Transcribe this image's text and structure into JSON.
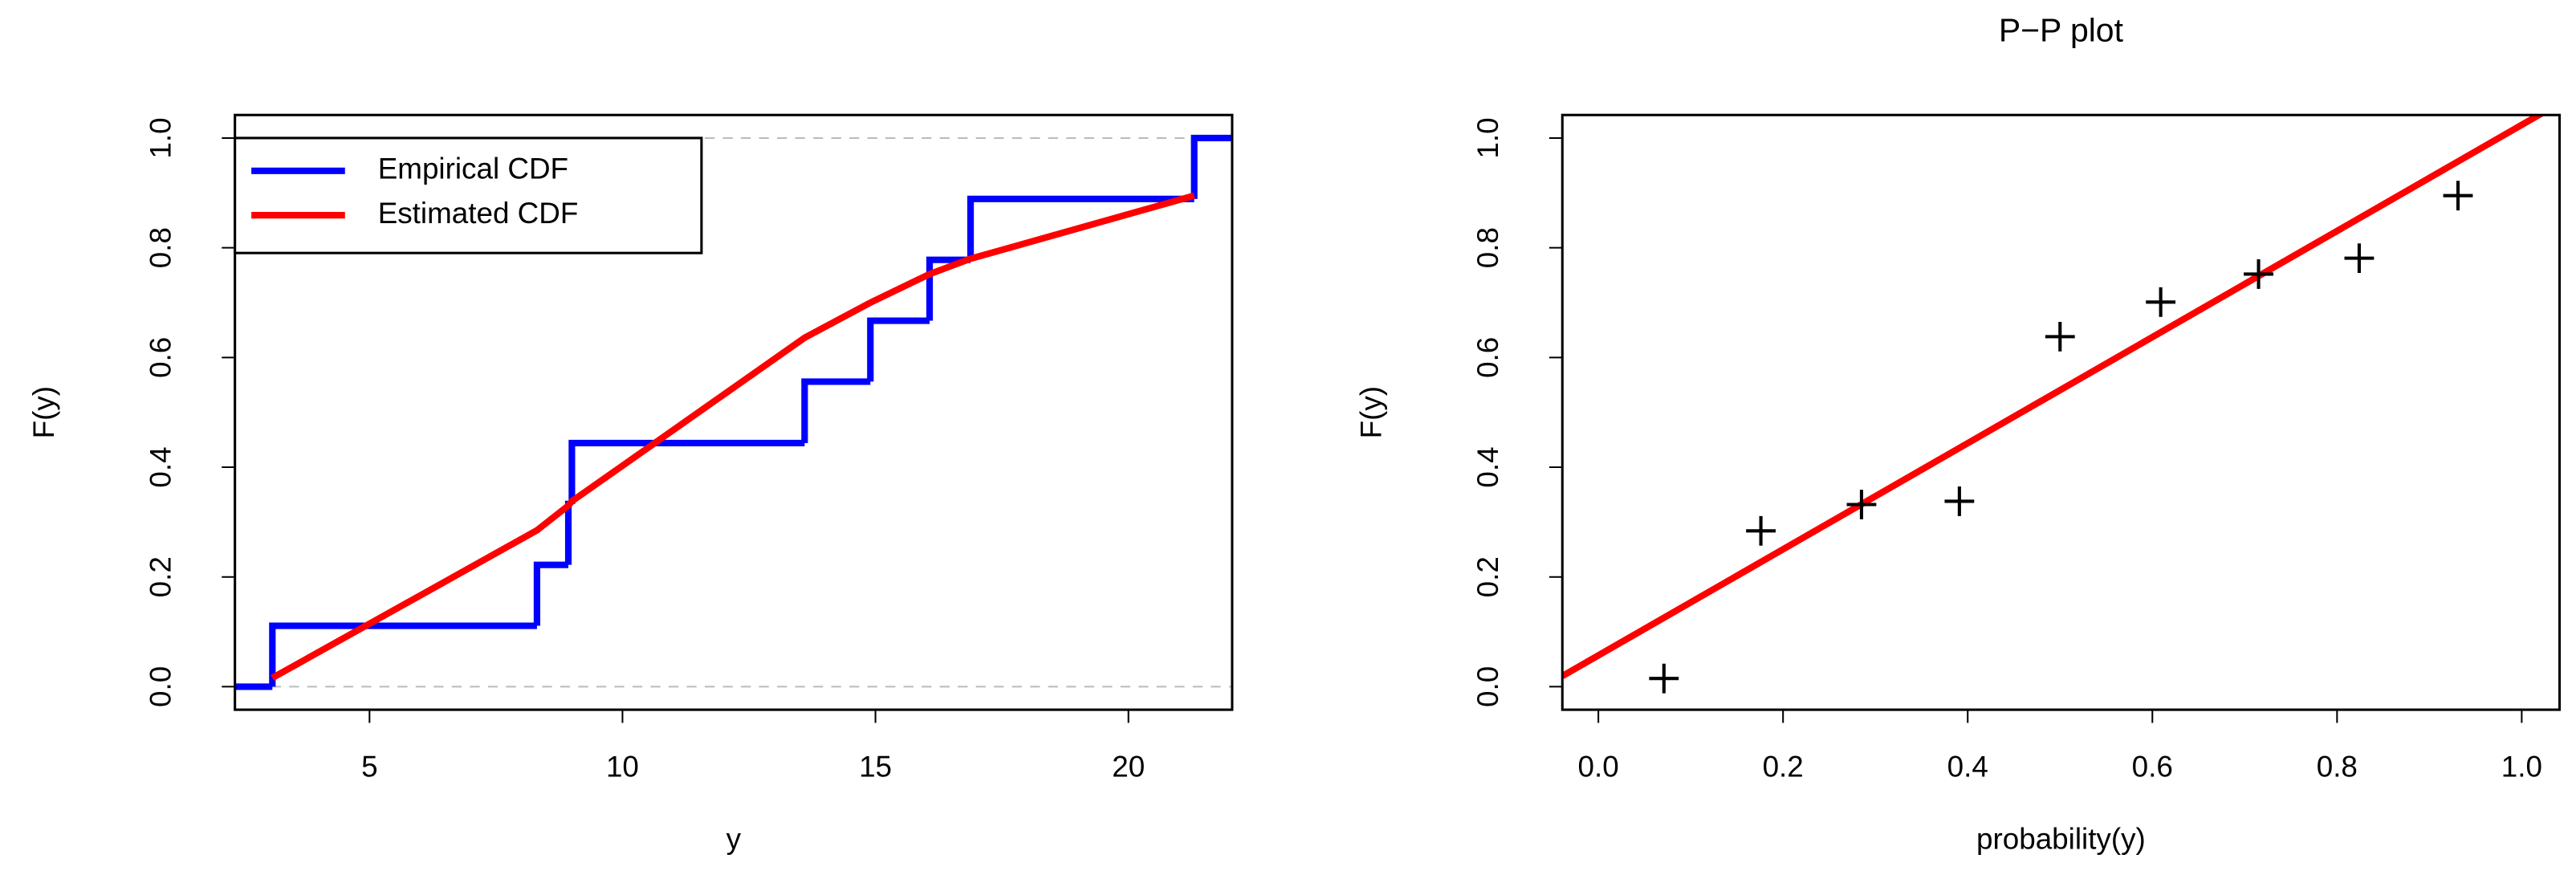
{
  "chart_data": [
    {
      "type": "step-cdf",
      "xlabel": "y",
      "ylabel": "F(y)",
      "xlim": [
        2.34,
        22.05
      ],
      "ylim": [
        -0.042,
        1.042
      ],
      "xticks": [
        5,
        10,
        15,
        20
      ],
      "yticks": [
        {
          "value": 0,
          "label": "0.0"
        },
        {
          "value": 0.2,
          "label": "0.2"
        },
        {
          "value": 0.4,
          "label": "0.4"
        },
        {
          "value": 0.6,
          "label": "0.6"
        },
        {
          "value": 0.8,
          "label": "0.8"
        },
        {
          "value": 1,
          "label": "1.0"
        }
      ],
      "hlines": [
        0,
        1
      ],
      "hline_color": "#bbbbbb",
      "legend": "top-left",
      "series": [
        {
          "name": "Empirical CDF",
          "color": "#0000ff",
          "style": "step",
          "x": [
            3.08,
            8.31,
            8.93,
            9.0,
            13.6,
            14.9,
            16.07,
            16.88,
            21.3
          ],
          "values": [
            0.111,
            0.222,
            0.333,
            0.444,
            0.556,
            0.667,
            0.778,
            0.889,
            1.0
          ]
        },
        {
          "name": "Estimated CDF",
          "color": "#ff0000",
          "style": "line",
          "x": [
            3.08,
            8.31,
            8.93,
            9.0,
            13.6,
            14.9,
            16.07,
            16.88,
            21.3
          ],
          "values": [
            0.016,
            0.285,
            0.33,
            0.338,
            0.636,
            0.7,
            0.752,
            0.78,
            0.895
          ]
        }
      ]
    },
    {
      "type": "scatter",
      "title": "P−P plot",
      "xlabel": "probability(y)",
      "ylabel": "F(y)",
      "xlim": [
        -0.039,
        1.041
      ],
      "ylim": [
        -0.042,
        1.042
      ],
      "xticks": [
        {
          "value": 0,
          "label": "0.0"
        },
        {
          "value": 0.2,
          "label": "0.2"
        },
        {
          "value": 0.4,
          "label": "0.4"
        },
        {
          "value": 0.6,
          "label": "0.6"
        },
        {
          "value": 0.8,
          "label": "0.8"
        },
        {
          "value": 1,
          "label": "1.0"
        }
      ],
      "yticks": [
        {
          "value": 0,
          "label": "0.0"
        },
        {
          "value": 0.2,
          "label": "0.2"
        },
        {
          "value": 0.4,
          "label": "0.4"
        },
        {
          "value": 0.6,
          "label": "0.6"
        },
        {
          "value": 0.8,
          "label": "0.8"
        },
        {
          "value": 1,
          "label": "1.0"
        }
      ],
      "series": [
        {
          "color": "#000000",
          "marker": "+",
          "x": [
            0.071,
            0.176,
            0.285,
            0.391,
            0.5,
            0.609,
            0.715,
            0.824,
            0.931
          ],
          "values": [
            0.015,
            0.284,
            0.332,
            0.338,
            0.638,
            0.701,
            0.752,
            0.781,
            0.895
          ]
        }
      ],
      "reference_line": {
        "color": "#ff0000",
        "x": [
          0,
          1
        ],
        "values": [
          0.057,
          1.024
        ]
      }
    }
  ]
}
